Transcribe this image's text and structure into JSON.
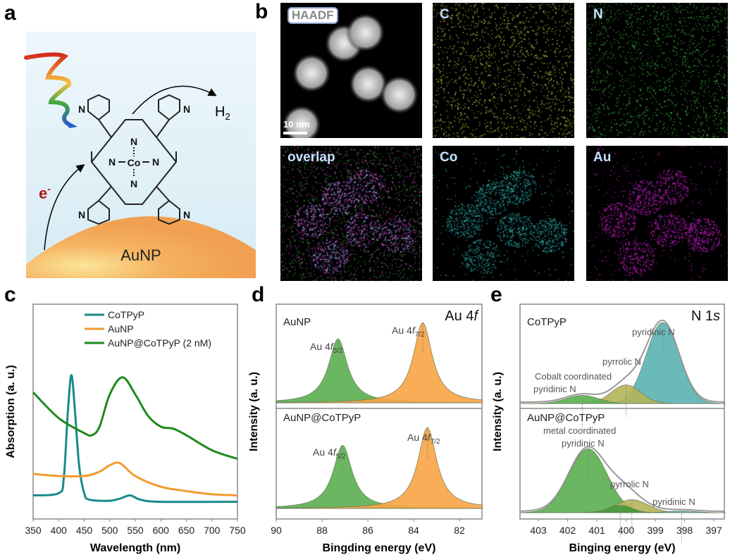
{
  "panels": {
    "a": "a",
    "b": "b",
    "c": "c",
    "d": "d",
    "e": "e"
  },
  "scheme": {
    "light_label": "",
    "electron": "e",
    "electron_sup": "-",
    "product": "H",
    "product_sub": "2",
    "particle": "AuNP",
    "atoms": {
      "n": "N",
      "co": "Co",
      "n_top": "N",
      "n_left": "N",
      "n_right": "N",
      "n_bottom": "N",
      "py1": "N",
      "py2": "N",
      "py3": "N",
      "py4": "N"
    }
  },
  "em": {
    "tiles": [
      {
        "label": "HAADF",
        "kind": "haadf"
      },
      {
        "label": "C",
        "color": "#c8c84a",
        "kind": "uniform"
      },
      {
        "label": "N",
        "color": "#3cb43c",
        "kind": "uniform"
      },
      {
        "label": "overlap",
        "color": "#c040c0",
        "kind": "overlap"
      },
      {
        "label": "Co",
        "color": "#30b0b0",
        "kind": "particles"
      },
      {
        "label": "Au",
        "color": "#c020c0",
        "kind": "particles"
      }
    ],
    "scale_label": "10 nm"
  },
  "chart_data": [
    {
      "id": "c",
      "type": "line",
      "title": "",
      "xlabel": "Wavelength (nm)",
      "ylabel": "Absorption (a. u.)",
      "xlim": [
        350,
        750
      ],
      "ylim": [
        0,
        1
      ],
      "xticks": [
        "350",
        "400",
        "450",
        "500",
        "550",
        "600",
        "650",
        "700",
        "750"
      ],
      "legend_position": "top",
      "series": [
        {
          "name": "CoTPyP",
          "color": "#1a8a8a",
          "x": [
            350,
            400,
            410,
            418,
            425,
            432,
            440,
            450,
            460,
            500,
            520,
            540,
            560,
            600,
            750
          ],
          "y": [
            0.11,
            0.12,
            0.19,
            0.5,
            0.67,
            0.5,
            0.25,
            0.12,
            0.09,
            0.085,
            0.095,
            0.11,
            0.09,
            0.08,
            0.08
          ]
        },
        {
          "name": "AuNP",
          "color": "#f39a2e",
          "x": [
            350,
            400,
            450,
            480,
            500,
            520,
            550,
            600,
            650,
            700,
            750
          ],
          "y": [
            0.21,
            0.2,
            0.2,
            0.22,
            0.25,
            0.26,
            0.2,
            0.15,
            0.13,
            0.115,
            0.11
          ]
        },
        {
          "name": "AuNP@CoTPyP (2 nM)",
          "color": "#1e8a1e",
          "x": [
            350,
            400,
            450,
            465,
            480,
            500,
            525,
            550,
            575,
            600,
            625,
            650,
            700,
            750
          ],
          "y": [
            0.59,
            0.47,
            0.4,
            0.39,
            0.43,
            0.58,
            0.66,
            0.58,
            0.48,
            0.43,
            0.42,
            0.39,
            0.32,
            0.28
          ]
        }
      ]
    },
    {
      "id": "d",
      "type": "area",
      "title": "Au 4f",
      "title_pre": "Au 4",
      "title_it": "f",
      "xlabel": "Bingding energy (eV)",
      "ylabel": "Intensity (a. u.)",
      "xlim": [
        90,
        81
      ],
      "xticks": [
        "90",
        "88",
        "86",
        "84",
        "82"
      ],
      "spectra": [
        {
          "name": "AuNP",
          "peaks": [
            {
              "pre": "Au 4",
              "it": "f",
              "sub": "5/2",
              "center": 87.3,
              "height": 0.79,
              "fwhm": 1.0,
              "color": "#5aae50"
            },
            {
              "pre": "Au 4",
              "it": "f",
              "sub": "7/2",
              "center": 83.6,
              "height": 0.99,
              "fwhm": 1.0,
              "color": "#f7a444"
            }
          ]
        },
        {
          "name": "AuNP@CoTPyP",
          "peaks": [
            {
              "pre": "Au 4",
              "it": "f",
              "sub": "5/2",
              "center": 87.1,
              "height": 0.78,
              "fwhm": 1.0,
              "color": "#5aae50"
            },
            {
              "pre": "Au 4",
              "it": "f",
              "sub": "7/2",
              "center": 83.4,
              "height": 1.0,
              "fwhm": 1.0,
              "color": "#f7a444"
            }
          ]
        }
      ]
    },
    {
      "id": "e",
      "type": "area",
      "title": "N 1s",
      "title_pre": "N 1",
      "title_it": "s",
      "xlabel": "Binging energy (eV)",
      "ylabel": "Intensity (a. u.)",
      "xlim": [
        403.6,
        396.6
      ],
      "xticks": [
        "403",
        "402",
        "401",
        "400",
        "399",
        "398",
        "397"
      ],
      "spectra": [
        {
          "name": "CoTPyP",
          "peaks": [
            {
              "label": "pyridinic N",
              "center": 398.75,
              "height": 1.0,
              "sigma": 0.56,
              "color": "#5ab3b3"
            },
            {
              "label": "pyrrolic N",
              "center": 400.0,
              "height": 0.23,
              "sigma": 0.5,
              "color": "#b5b45a"
            },
            {
              "label": "Cobalt coordinated",
              "label2": "pyridinic N",
              "center": 401.5,
              "height": 0.1,
              "sigma": 0.55,
              "color": "#5aae50"
            }
          ]
        },
        {
          "name": "AuNP@CoTPyP",
          "peaks": [
            {
              "label": "metal coordinated",
              "label2": "pyridinic N",
              "center": 401.3,
              "height": 0.79,
              "sigma": 0.65,
              "color": "#5aae50"
            },
            {
              "label": "pyrrolic N",
              "center": 399.8,
              "height": 0.16,
              "sigma": 0.55,
              "color": "#b5b45a"
            },
            {
              "label": "",
              "center": 400.2,
              "height": 0.09,
              "sigma": 0.4,
              "color": "#3f9a3a"
            },
            {
              "label": "pyridinic N",
              "center": 398.1,
              "height": 0.02,
              "sigma": 0.5,
              "color": "#5ab3b3"
            }
          ]
        }
      ]
    }
  ]
}
